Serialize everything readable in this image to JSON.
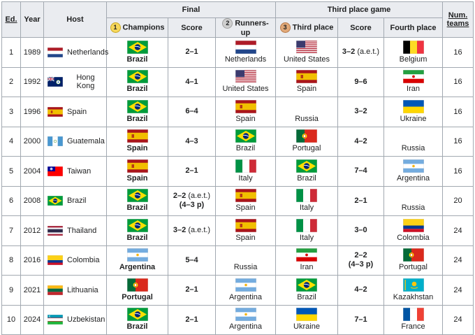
{
  "headers": {
    "ed": "Ed.",
    "year": "Year",
    "host": "Host",
    "final": "Final",
    "third_place_game": "Third place game",
    "num_teams_1": "Num.",
    "num_teams_2": "teams",
    "champions": "Champions",
    "score": "Score",
    "runners_up": "Runners-up",
    "third_place": "Third place",
    "score2": "Score",
    "fourth_place": "Fourth place",
    "medal1": "1",
    "medal2": "2",
    "medal3": "3"
  },
  "rows": [
    {
      "ed": "1",
      "year": "1989",
      "host": "Netherlands",
      "host_flag": "netherlands",
      "champion": "Brazil",
      "champion_flag": "brazil",
      "score": "2–1",
      "score_note": "",
      "score_line2": "",
      "runner_up": "Netherlands",
      "runner_up_flag": "netherlands",
      "third": "United States",
      "third_flag": "usa",
      "score2": "3–2",
      "score2_note": "(a.e.t.)",
      "score2_line2": "",
      "fourth": "Belgium",
      "fourth_flag": "belgium",
      "teams": "16"
    },
    {
      "ed": "2",
      "year": "1992",
      "host": "Hong Kong",
      "host_flag": "hongkong",
      "champion": "Brazil",
      "champion_flag": "brazil",
      "score": "4–1",
      "score_note": "",
      "score_line2": "",
      "runner_up": "United States",
      "runner_up_flag": "usa",
      "third": "Spain",
      "third_flag": "spain",
      "score2": "9–6",
      "score2_note": "",
      "score2_line2": "",
      "fourth": "Iran",
      "fourth_flag": "iran",
      "teams": "16"
    },
    {
      "ed": "3",
      "year": "1996",
      "host": "Spain",
      "host_flag": "spain",
      "champion": "Brazil",
      "champion_flag": "brazil",
      "score": "6–4",
      "score_note": "",
      "score_line2": "",
      "runner_up": "Spain",
      "runner_up_flag": "spain",
      "third": "Russia",
      "third_flag": "russia",
      "score2": "3–2",
      "score2_note": "",
      "score2_line2": "",
      "fourth": "Ukraine",
      "fourth_flag": "ukraine",
      "teams": "16"
    },
    {
      "ed": "4",
      "year": "2000",
      "host": "Guatemala",
      "host_flag": "guatemala",
      "champion": "Spain",
      "champion_flag": "spain",
      "score": "4–3",
      "score_note": "",
      "score_line2": "",
      "runner_up": "Brazil",
      "runner_up_flag": "brazil",
      "third": "Portugal",
      "third_flag": "portugal",
      "score2": "4–2",
      "score2_note": "",
      "score2_line2": "",
      "fourth": "Russia",
      "fourth_flag": "russia",
      "teams": "16"
    },
    {
      "ed": "5",
      "year": "2004",
      "host": "Taiwan",
      "host_flag": "taiwan",
      "champion": "Spain",
      "champion_flag": "spain",
      "score": "2–1",
      "score_note": "",
      "score_line2": "",
      "runner_up": "Italy",
      "runner_up_flag": "italy",
      "third": "Brazil",
      "third_flag": "brazil",
      "score2": "7–4",
      "score2_note": "",
      "score2_line2": "",
      "fourth": "Argentina",
      "fourth_flag": "argentina",
      "teams": "16"
    },
    {
      "ed": "6",
      "year": "2008",
      "host": "Brazil",
      "host_flag": "brazil",
      "champion": "Brazil",
      "champion_flag": "brazil",
      "score": "2–2",
      "score_note": "(a.e.t.)",
      "score_line2": "(4–3 p)",
      "runner_up": "Spain",
      "runner_up_flag": "spain",
      "third": "Italy",
      "third_flag": "italy",
      "score2": "2–1",
      "score2_note": "",
      "score2_line2": "",
      "fourth": "Russia",
      "fourth_flag": "russia",
      "teams": "20"
    },
    {
      "ed": "7",
      "year": "2012",
      "host": "Thailand",
      "host_flag": "thailand",
      "champion": "Brazil",
      "champion_flag": "brazil",
      "score": "3–2",
      "score_note": "(a.e.t.)",
      "score_line2": "",
      "runner_up": "Spain",
      "runner_up_flag": "spain",
      "third": "Italy",
      "third_flag": "italy",
      "score2": "3–0",
      "score2_note": "",
      "score2_line2": "",
      "fourth": "Colombia",
      "fourth_flag": "colombia",
      "teams": "24"
    },
    {
      "ed": "8",
      "year": "2016",
      "host": "Colombia",
      "host_flag": "colombia",
      "champion": "Argentina",
      "champion_flag": "argentina",
      "score": "5–4",
      "score_note": "",
      "score_line2": "",
      "runner_up": "Russia",
      "runner_up_flag": "russia",
      "third": "Iran",
      "third_flag": "iran",
      "score2": "2–2",
      "score2_note": "",
      "score2_line2": "(4–3 p)",
      "fourth": "Portugal",
      "fourth_flag": "portugal",
      "teams": "24"
    },
    {
      "ed": "9",
      "year": "2021",
      "host": "Lithuania",
      "host_flag": "lithuania",
      "champion": "Portugal",
      "champion_flag": "portugal",
      "score": "2–1",
      "score_note": "",
      "score_line2": "",
      "runner_up": "Argentina",
      "runner_up_flag": "argentina",
      "third": "Brazil",
      "third_flag": "brazil",
      "score2": "4–2",
      "score2_note": "",
      "score2_line2": "",
      "fourth": "Kazakhstan",
      "fourth_flag": "kazakhstan",
      "teams": "24"
    },
    {
      "ed": "10",
      "year": "2024",
      "host": "Uzbekistan",
      "host_flag": "uzbekistan",
      "champion": "Brazil",
      "champion_flag": "brazil",
      "score": "2–1",
      "score_note": "",
      "score_line2": "",
      "runner_up": "Argentina",
      "runner_up_flag": "argentina",
      "third": "Ukraine",
      "third_flag": "ukraine",
      "score2": "7–1",
      "score2_note": "",
      "score2_line2": "",
      "fourth": "France",
      "fourth_flag": "france",
      "teams": "24"
    }
  ],
  "colors": {
    "header_bg": "#eaecf0",
    "border": "#a2a9b1",
    "gold": "#f6d75b",
    "silver": "#cfcfcf",
    "bronze": "#e0a878"
  }
}
